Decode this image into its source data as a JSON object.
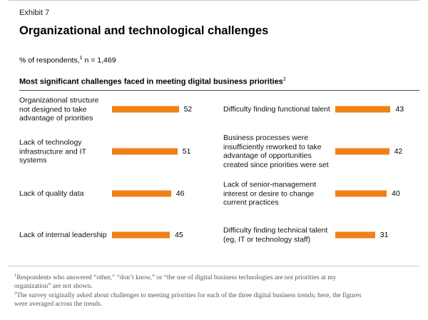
{
  "header": {
    "exhibit": "Exhibit 7",
    "title": "Organizational and technological challenges",
    "respondents_prefix": "% of respondents,",
    "respondents_sup": "1",
    "respondents_suffix": " n = 1,469",
    "section_title": "Most significant challenges faced in meeting digital business priorities",
    "section_sup": "2"
  },
  "colors": {
    "bar": "#f08015"
  },
  "chart_data": {
    "type": "bar",
    "orientation": "horizontal",
    "title": "Most significant challenges faced in meeting digital business priorities",
    "xlim": [
      0,
      100
    ],
    "grid": false,
    "legend": "none",
    "columns": [
      {
        "categories": [
          "Organizational structure not designed to take advantage of priorities",
          "Lack of technology infrastructure and IT systems",
          "Lack of quality data",
          "Lack of internal leadership"
        ],
        "values": [
          52,
          51,
          46,
          45
        ]
      },
      {
        "categories": [
          "Difficulty finding functional talent",
          "Business processes were insufficiently reworked to take advantage of opportunities created since priorities were set",
          "Lack of senior-management interest or desire to change current practices",
          "Difficulty finding technical talent (eg, IT or technology staff)"
        ],
        "values": [
          43,
          42,
          40,
          31
        ]
      }
    ]
  },
  "footnotes": [
    {
      "marker": "1",
      "text": "Respondents who answered “other,” “don’t know,” or “the use of digital business technologies are not priorities at my organization” are not shown."
    },
    {
      "marker": "2",
      "text": "The survey originally asked about challenges to meeting priorities for each of the three digital business trends; here, the figures were averaged across the trends."
    }
  ]
}
